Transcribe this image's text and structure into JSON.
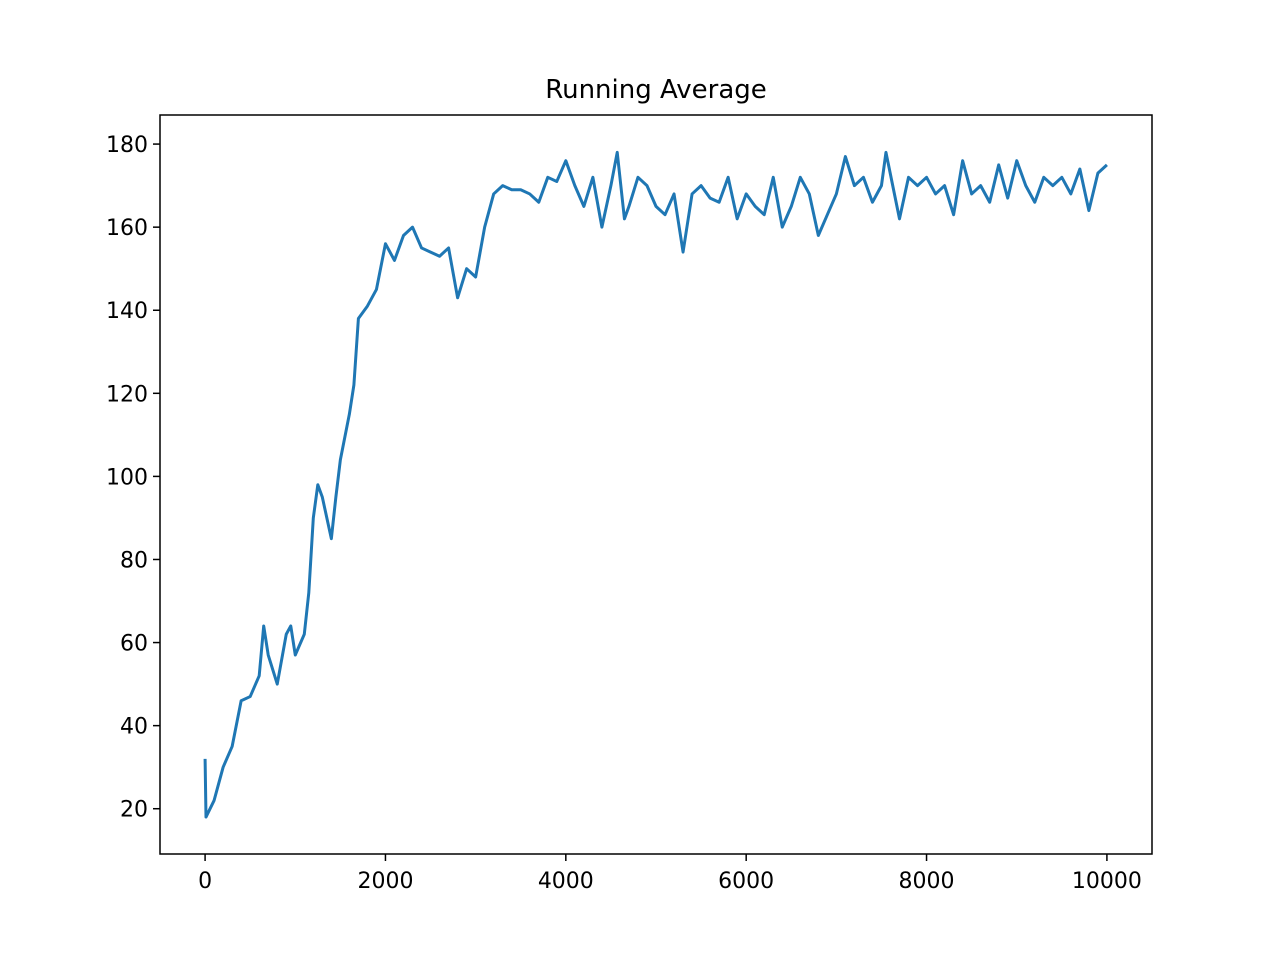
{
  "chart_data": {
    "type": "line",
    "title": "Running Average",
    "x": [
      0,
      10,
      100,
      200,
      300,
      400,
      500,
      600,
      650,
      700,
      800,
      900,
      950,
      1000,
      1100,
      1150,
      1200,
      1250,
      1300,
      1400,
      1450,
      1500,
      1600,
      1650,
      1700,
      1800,
      1900,
      2000,
      2100,
      2200,
      2300,
      2400,
      2500,
      2600,
      2700,
      2800,
      2900,
      3000,
      3100,
      3200,
      3300,
      3400,
      3500,
      3600,
      3700,
      3800,
      3900,
      4000,
      4100,
      4200,
      4300,
      4400,
      4500,
      4570,
      4650,
      4700,
      4800,
      4900,
      5000,
      5100,
      5200,
      5300,
      5400,
      5500,
      5600,
      5700,
      5800,
      5900,
      6000,
      6100,
      6200,
      6300,
      6400,
      6500,
      6600,
      6700,
      6800,
      6900,
      7000,
      7100,
      7200,
      7300,
      7400,
      7500,
      7550,
      7700,
      7800,
      7900,
      8000,
      8100,
      8200,
      8300,
      8400,
      8500,
      8600,
      8700,
      8800,
      8900,
      9000,
      9100,
      9200,
      9300,
      9400,
      9500,
      9600,
      9700,
      9800,
      9900,
      10000
    ],
    "series": [
      {
        "color": "#1f77b4",
        "values": [
          32,
          18,
          22,
          30,
          35,
          46,
          47,
          52,
          64,
          57,
          50,
          62,
          64,
          57,
          62,
          72,
          90,
          98,
          95,
          85,
          95,
          104,
          115,
          122,
          138,
          141,
          145,
          156,
          152,
          158,
          160,
          155,
          154,
          153,
          155,
          143,
          150,
          148,
          160,
          168,
          170,
          169,
          169,
          168,
          166,
          172,
          171,
          176,
          170,
          165,
          172,
          160,
          170,
          178,
          162,
          165,
          172,
          170,
          165,
          163,
          168,
          154,
          168,
          170,
          167,
          166,
          172,
          162,
          168,
          165,
          163,
          172,
          160,
          165,
          172,
          168,
          158,
          163,
          168,
          177,
          170,
          172,
          166,
          170,
          178,
          162,
          172,
          170,
          172,
          168,
          170,
          163,
          176,
          168,
          170,
          166,
          175,
          167,
          176,
          170,
          166,
          172,
          170,
          172,
          168,
          174,
          164,
          173,
          175
        ]
      }
    ],
    "xlim": [
      -500,
      10500
    ],
    "xticks": [
      0,
      2000,
      4000,
      6000,
      8000,
      10000
    ],
    "ylim": [
      9.1,
      187.0
    ],
    "yticks": [
      20,
      40,
      60,
      80,
      100,
      120,
      140,
      160,
      180
    ]
  }
}
